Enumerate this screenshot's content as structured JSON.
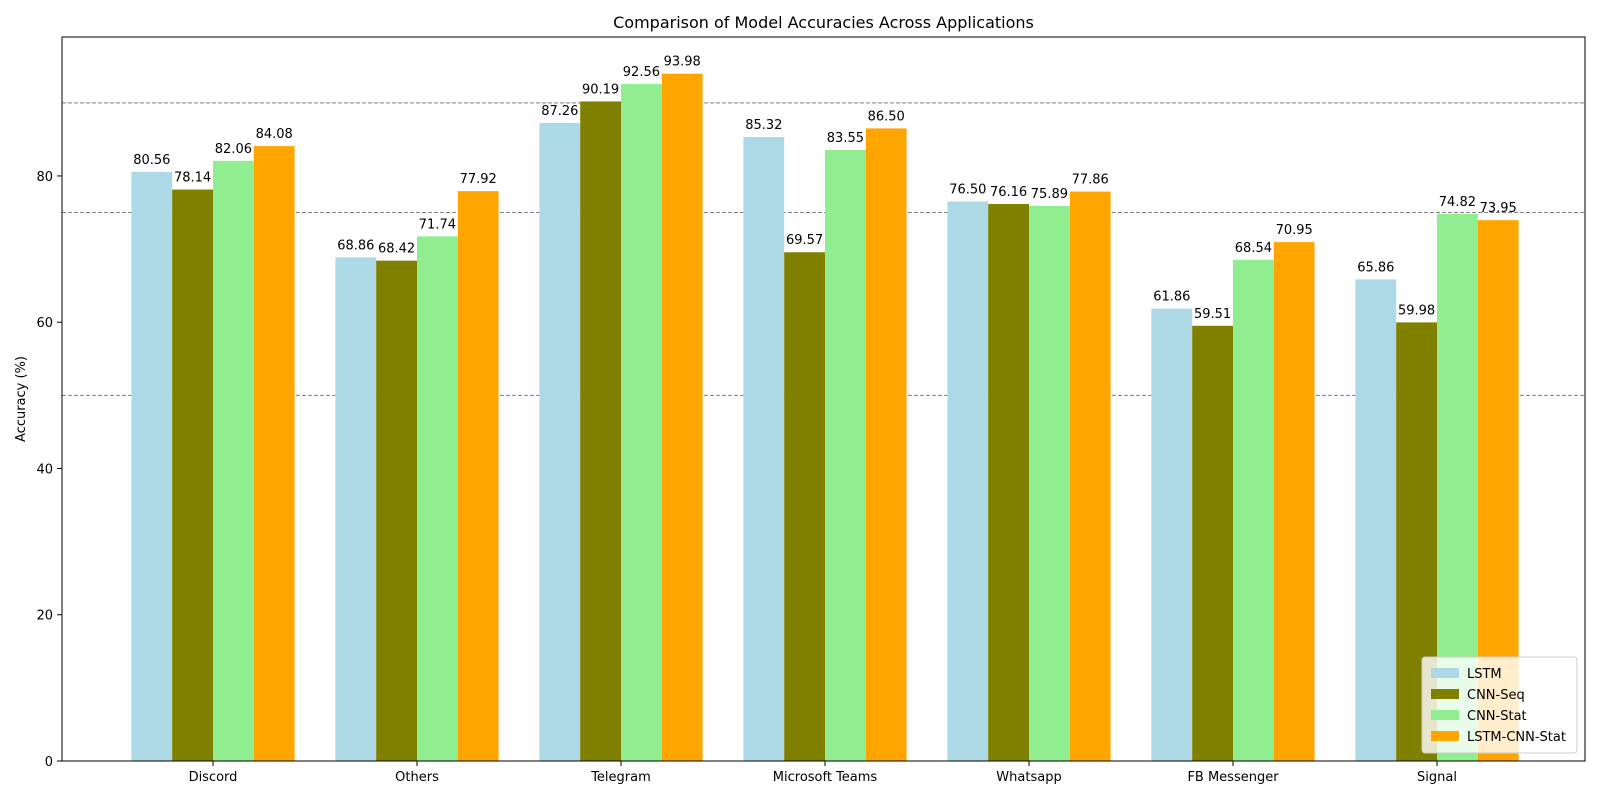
{
  "chart_data": {
    "type": "bar",
    "title": "Comparison of Model Accuracies Across Applications",
    "xlabel": "",
    "ylabel": "Accuracy (%)",
    "ylim": [
      0,
      99
    ],
    "yticks": [
      0,
      20,
      40,
      60,
      80
    ],
    "reference_lines": [
      50,
      75,
      90
    ],
    "categories": [
      "Discord",
      "Others",
      "Telegram",
      "Microsoft Teams",
      "Whatsapp",
      "FB Messenger",
      "Signal"
    ],
    "series": [
      {
        "name": "LSTM",
        "color": "#add8e6",
        "values": [
          80.56,
          68.86,
          87.26,
          85.32,
          76.5,
          61.86,
          65.86
        ]
      },
      {
        "name": "CNN-Seq",
        "color": "#808000",
        "values": [
          78.14,
          68.42,
          90.19,
          69.57,
          76.16,
          59.51,
          59.98
        ]
      },
      {
        "name": "CNN-Stat",
        "color": "#90ee90",
        "values": [
          82.06,
          71.74,
          92.56,
          83.55,
          75.89,
          68.54,
          74.82
        ]
      },
      {
        "name": "LSTM-CNN-Stat",
        "color": "#ffa500",
        "values": [
          84.08,
          77.92,
          93.98,
          86.5,
          77.86,
          70.95,
          73.95
        ]
      }
    ],
    "legend_position": "lower-right",
    "grid": false
  }
}
